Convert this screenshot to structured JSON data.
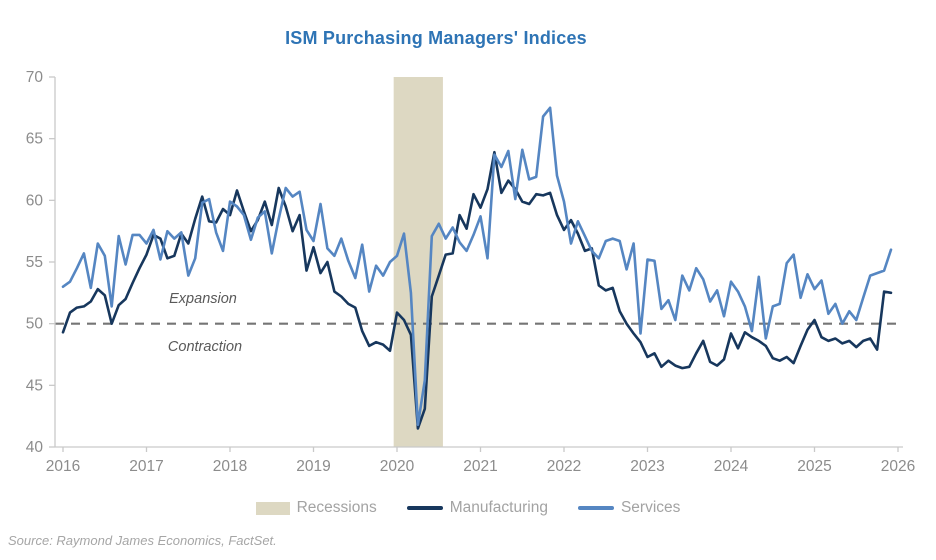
{
  "title": "ISM Purchasing Managers' Indices",
  "source_note": "Source: Raymond James Economics, FactSet.",
  "annotations": {
    "above_reference_line": "Expansion",
    "below_reference_line": "Contraction"
  },
  "legend": [
    {
      "label": "Recessions",
      "swatch": "rect",
      "color": "#ddd8c2"
    },
    {
      "label": "Manufacturing",
      "swatch": "line",
      "color": "#17375d"
    },
    {
      "label": "Services",
      "swatch": "line",
      "color": "#5586c2"
    }
  ],
  "colors": {
    "title_text": "#2e74b5",
    "manufacturing_line": "#17375d",
    "services_line": "#5586c2",
    "recession_band": "#ddd8c2",
    "reference_dash": "#757575",
    "axis_line": "#c9c9c9",
    "axis_text": "#8c8c8c",
    "legend_text": "#a3a3a3",
    "annotation_text": "#595959",
    "source_text": "#a6a6a6"
  },
  "chart_data": {
    "type": "line",
    "title": "ISM Purchasing Managers' Indices",
    "xlabel": "",
    "ylabel": "",
    "frequency": "monthly",
    "x_start": "2016-01",
    "x_end": "2025-12",
    "x_tick_years": [
      2016,
      2017,
      2018,
      2019,
      2020,
      2021,
      2022,
      2023,
      2024,
      2025,
      2026
    ],
    "ylim": [
      40,
      70
    ],
    "y_ticks": [
      40,
      45,
      50,
      55,
      60,
      65,
      70
    ],
    "grid": false,
    "legend_position": "bottom",
    "reference_line": {
      "value": 50,
      "style": "dashed",
      "above_label": "Expansion",
      "below_label": "Contraction"
    },
    "recession_band": {
      "label": "Recessions",
      "start_year": 2019.96,
      "end_year": 2020.55
    },
    "series": [
      {
        "name": "Manufacturing",
        "color": "#17375d",
        "values": [
          49.3,
          50.9,
          51.3,
          51.4,
          51.8,
          52.8,
          52.3,
          50.0,
          51.5,
          52.0,
          53.3,
          54.5,
          55.6,
          57.2,
          56.9,
          55.3,
          55.5,
          57.3,
          56.5,
          58.5,
          60.3,
          58.3,
          58.2,
          59.3,
          58.8,
          60.8,
          59.1,
          57.5,
          58.4,
          59.9,
          58.0,
          61.0,
          59.5,
          57.5,
          58.8,
          54.3,
          56.2,
          54.1,
          55.0,
          52.6,
          52.2,
          51.6,
          51.3,
          49.4,
          48.2,
          48.5,
          48.3,
          47.8,
          50.9,
          50.3,
          49.1,
          41.5,
          43.1,
          52.2,
          53.9,
          55.6,
          55.7,
          58.8,
          57.7,
          60.5,
          59.4,
          60.9,
          63.9,
          60.6,
          61.6,
          60.9,
          59.9,
          59.7,
          60.5,
          60.4,
          60.6,
          58.8,
          57.6,
          58.4,
          57.3,
          55.9,
          56.1,
          53.1,
          52.7,
          52.9,
          51.0,
          50.0,
          49.2,
          48.5,
          47.3,
          47.6,
          46.5,
          47.0,
          46.6,
          46.4,
          46.5,
          47.6,
          48.6,
          46.9,
          46.6,
          47.1,
          49.2,
          48.0,
          49.3,
          48.9,
          48.6,
          48.2,
          47.2,
          47.0,
          47.3,
          46.8,
          48.2,
          49.5,
          50.3,
          48.9,
          48.6,
          48.8,
          48.4,
          48.6,
          48.1,
          48.6,
          48.8,
          47.9,
          52.6,
          52.5
        ]
      },
      {
        "name": "Services",
        "color": "#5586c2",
        "values": [
          53.0,
          53.4,
          54.5,
          55.7,
          52.9,
          56.5,
          55.5,
          51.4,
          57.1,
          54.8,
          57.2,
          57.2,
          56.5,
          57.6,
          55.2,
          57.5,
          56.9,
          57.4,
          53.9,
          55.3,
          59.8,
          60.1,
          57.4,
          55.9,
          59.9,
          59.5,
          58.8,
          56.8,
          58.6,
          59.1,
          55.7,
          58.5,
          61.0,
          60.3,
          60.7,
          57.6,
          56.7,
          59.7,
          56.1,
          55.5,
          56.9,
          55.1,
          53.7,
          56.4,
          52.6,
          54.7,
          53.9,
          55.0,
          55.5,
          57.3,
          52.5,
          41.8,
          45.4,
          57.1,
          58.1,
          56.9,
          57.8,
          56.6,
          55.9,
          57.2,
          58.7,
          55.3,
          63.7,
          62.7,
          64.0,
          60.1,
          64.1,
          61.7,
          61.9,
          66.8,
          67.5,
          62.0,
          59.9,
          56.5,
          58.3,
          57.1,
          55.9,
          55.3,
          56.7,
          56.9,
          56.7,
          54.4,
          56.5,
          49.2,
          55.2,
          55.1,
          51.2,
          51.9,
          50.3,
          53.9,
          52.7,
          54.5,
          53.6,
          51.8,
          52.7,
          50.6,
          53.4,
          52.6,
          51.4,
          49.4,
          53.8,
          48.8,
          51.4,
          51.6,
          54.9,
          55.6,
          52.1,
          54.0,
          52.8,
          53.5,
          50.8,
          51.6,
          50.0,
          51.0,
          50.3,
          52.1,
          53.9,
          54.1,
          54.3,
          56.0
        ]
      }
    ]
  }
}
